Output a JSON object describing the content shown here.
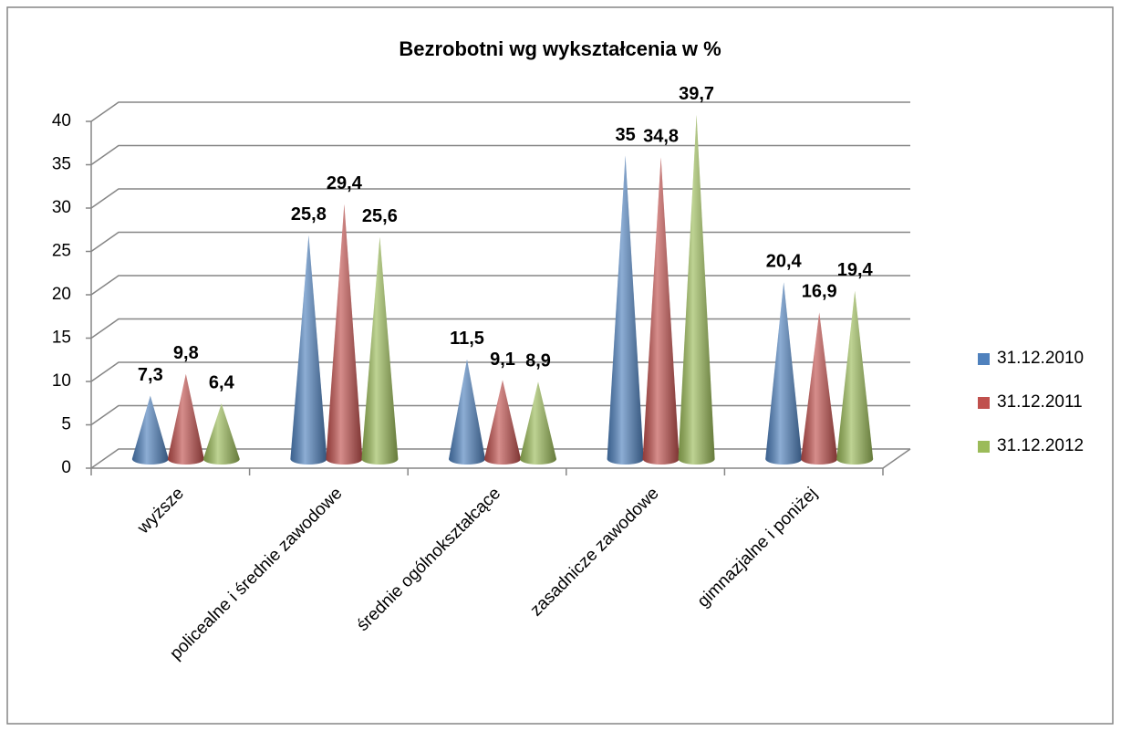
{
  "chart_data": {
    "type": "cone3d",
    "title": "Bezrobotni wg wykształcenia w %",
    "categories": [
      "wyższe",
      "policealne i średnie zawodowe",
      "średnie ogólnokształcące",
      "zasadnicze zawodowe",
      "gimnazjalne i poniżej"
    ],
    "series": [
      {
        "name": "31.12.2010",
        "color": "#4f81bd",
        "values": [
          7.3,
          25.8,
          11.5,
          35,
          20.4
        ],
        "value_labels": [
          "7,3",
          "25,8",
          "11,5",
          "35",
          "20,4"
        ]
      },
      {
        "name": "31.12.2011",
        "color": "#c0504d",
        "values": [
          9.8,
          29.4,
          9.1,
          34.8,
          16.9
        ],
        "value_labels": [
          "9,8",
          "29,4",
          "9,1",
          "34,8",
          "16,9"
        ]
      },
      {
        "name": "31.12.2012",
        "color": "#9bbb59",
        "values": [
          6.4,
          25.6,
          8.9,
          39.7,
          19.4
        ],
        "value_labels": [
          "6,4",
          "25,6",
          "8,9",
          "39,7",
          "19,4"
        ]
      }
    ],
    "ylim": [
      0,
      40
    ],
    "yticks": [
      0,
      5,
      10,
      15,
      20,
      25,
      30,
      35,
      40
    ],
    "grid": true,
    "legend": "right"
  }
}
